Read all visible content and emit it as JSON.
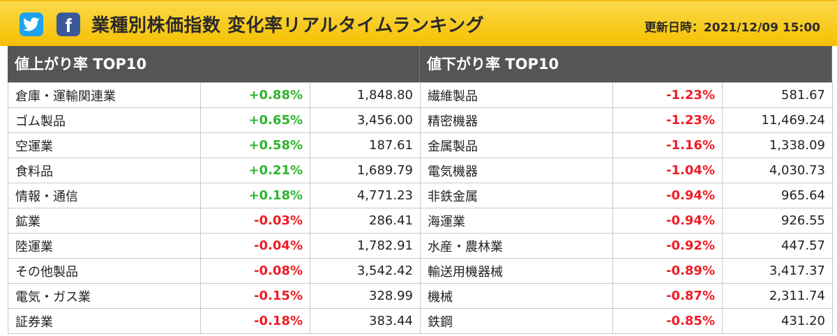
{
  "header": {
    "title": "業種別株価指数 変化率リアルタイムランキング",
    "updated": "更新日時：2021/12/09 15:00",
    "twitter_icon": "twitter-bird-icon",
    "facebook_icon": "facebook-f-icon",
    "facebook_glyph": "f",
    "colors": {
      "twitter": "#1da1f2",
      "facebook": "#3b5998",
      "banner": "#f5c000"
    }
  },
  "gainers": {
    "title": "値上がり率 TOP10",
    "rows": [
      {
        "name": "倉庫・運輸関連業",
        "change": "+0.88%",
        "value": "1,848.80",
        "dir": "up"
      },
      {
        "name": "ゴム製品",
        "change": "+0.65%",
        "value": "3,456.00",
        "dir": "up"
      },
      {
        "name": "空運業",
        "change": "+0.58%",
        "value": "187.61",
        "dir": "up"
      },
      {
        "name": "食料品",
        "change": "+0.21%",
        "value": "1,689.79",
        "dir": "up"
      },
      {
        "name": "情報・通信",
        "change": "+0.18%",
        "value": "4,771.23",
        "dir": "up"
      },
      {
        "name": "鉱業",
        "change": "-0.03%",
        "value": "286.41",
        "dir": "down"
      },
      {
        "name": "陸運業",
        "change": "-0.04%",
        "value": "1,782.91",
        "dir": "down"
      },
      {
        "name": "その他製品",
        "change": "-0.08%",
        "value": "3,542.42",
        "dir": "down"
      },
      {
        "name": "電気・ガス業",
        "change": "-0.15%",
        "value": "328.99",
        "dir": "down"
      },
      {
        "name": "証券業",
        "change": "-0.18%",
        "value": "383.44",
        "dir": "down"
      }
    ]
  },
  "losers": {
    "title": "値下がり率 TOP10",
    "rows": [
      {
        "name": "繊維製品",
        "change": "-1.23%",
        "value": "581.67",
        "dir": "down"
      },
      {
        "name": "精密機器",
        "change": "-1.23%",
        "value": "11,469.24",
        "dir": "down"
      },
      {
        "name": "金属製品",
        "change": "-1.16%",
        "value": "1,338.09",
        "dir": "down"
      },
      {
        "name": "電気機器",
        "change": "-1.04%",
        "value": "4,030.73",
        "dir": "down"
      },
      {
        "name": "非鉄金属",
        "change": "-0.94%",
        "value": "965.64",
        "dir": "down"
      },
      {
        "name": "海運業",
        "change": "-0.94%",
        "value": "926.55",
        "dir": "down"
      },
      {
        "name": "水産・農林業",
        "change": "-0.92%",
        "value": "447.57",
        "dir": "down"
      },
      {
        "name": "輸送用機器械",
        "change": "-0.89%",
        "value": "3,417.37",
        "dir": "down"
      },
      {
        "name": "機械",
        "change": "-0.87%",
        "value": "2,311.74",
        "dir": "down"
      },
      {
        "name": "鉄鋼",
        "change": "-0.85%",
        "value": "431.20",
        "dir": "down"
      }
    ]
  }
}
